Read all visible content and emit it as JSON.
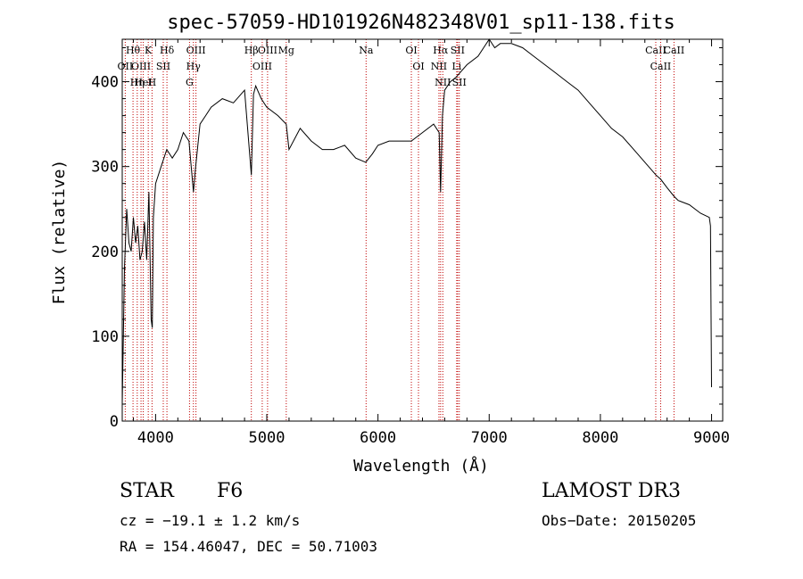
{
  "chart_data": {
    "type": "line",
    "title": "spec-57059-HD101926N482348V01_sp11-138.fits",
    "xlabel": "Wavelength (Å)",
    "ylabel": "Flux (relative)",
    "xlim": [
      3700,
      9100
    ],
    "ylim": [
      0,
      450
    ],
    "x_ticks": [
      "4000",
      "5000",
      "6000",
      "7000",
      "8000",
      "9000"
    ],
    "y_ticks": [
      "0",
      "100",
      "200",
      "300",
      "400"
    ],
    "grid": false,
    "series": [
      {
        "x": [
          3700,
          3720,
          3740,
          3760,
          3780,
          3800,
          3820,
          3840,
          3860,
          3880,
          3900,
          3920,
          3940,
          3960,
          3970,
          3980,
          4000,
          4050,
          4100,
          4150,
          4200,
          4250,
          4300,
          4340,
          4360,
          4400,
          4450,
          4500,
          4600,
          4700,
          4800,
          4861,
          4880,
          4900,
          4950,
          5000,
          5100,
          5175,
          5200,
          5300,
          5400,
          5500,
          5600,
          5700,
          5800,
          5890,
          5950,
          6000,
          6100,
          6200,
          6300,
          6400,
          6500,
          6550,
          6563,
          6580,
          6600,
          6650,
          6700,
          6800,
          6900,
          7000,
          7050,
          7100,
          7200,
          7300,
          7400,
          7500,
          7600,
          7700,
          7800,
          7900,
          8000,
          8100,
          8200,
          8300,
          8400,
          8500,
          8542,
          8600,
          8662,
          8700,
          8800,
          8900,
          8980,
          8990,
          9000
        ],
        "y": [
          20,
          180,
          250,
          210,
          200,
          240,
          210,
          230,
          190,
          200,
          235,
          190,
          270,
          120,
          110,
          240,
          280,
          300,
          320,
          310,
          320,
          340,
          330,
          270,
          300,
          350,
          360,
          370,
          380,
          375,
          390,
          290,
          385,
          395,
          380,
          370,
          360,
          350,
          320,
          345,
          330,
          320,
          320,
          325,
          310,
          305,
          315,
          325,
          330,
          330,
          330,
          340,
          350,
          340,
          270,
          360,
          390,
          400,
          405,
          420,
          430,
          450,
          440,
          445,
          445,
          440,
          430,
          420,
          410,
          400,
          390,
          375,
          360,
          345,
          335,
          320,
          305,
          290,
          285,
          275,
          265,
          260,
          255,
          245,
          240,
          230,
          40
        ]
      }
    ],
    "lines": [
      {
        "label": "Hθ",
        "wave": 3797
      },
      {
        "label": "OII",
        "wave": 3727
      },
      {
        "label": "OIII",
        "wave": 3869
      },
      {
        "label": "K",
        "wave": 3934
      },
      {
        "label": "HeI",
        "wave": 3889
      },
      {
        "label": "Hη",
        "wave": 3835
      },
      {
        "label": "H",
        "wave": 3968
      },
      {
        "label": "Hδ",
        "wave": 4102
      },
      {
        "label": "SII",
        "wave": 4069
      },
      {
        "label": "OIII",
        "wave": 4363
      },
      {
        "label": "Hγ",
        "wave": 4340
      },
      {
        "label": "G",
        "wave": 4305
      },
      {
        "label": "Hβ",
        "wave": 4861
      },
      {
        "label": "OIII",
        "wave": 4959
      },
      {
        "label": "OIII",
        "wave": 5007
      },
      {
        "label": "Mg",
        "wave": 5175
      },
      {
        "label": "Na",
        "wave": 5893
      },
      {
        "label": "OI",
        "wave": 6300
      },
      {
        "label": "OI",
        "wave": 6364
      },
      {
        "label": "Hα",
        "wave": 6563
      },
      {
        "label": "NII",
        "wave": 6548
      },
      {
        "label": "NII",
        "wave": 6583
      },
      {
        "label": "SII",
        "wave": 6716
      },
      {
        "label": "Li",
        "wave": 6708
      },
      {
        "label": "SII",
        "wave": 6731
      },
      {
        "label": "CaII",
        "wave": 8498
      },
      {
        "label": "CaII",
        "wave": 8542
      },
      {
        "label": "CaII",
        "wave": 8662
      }
    ]
  },
  "info": {
    "object_class": "STAR",
    "subclass": "F6",
    "survey": "LAMOST DR3",
    "cz": "cz = −19.1 ± 1.2 km/s",
    "obs_date": "Obs−Date: 20150205",
    "coords": "RA = 154.46047, DEC =  50.71003"
  }
}
